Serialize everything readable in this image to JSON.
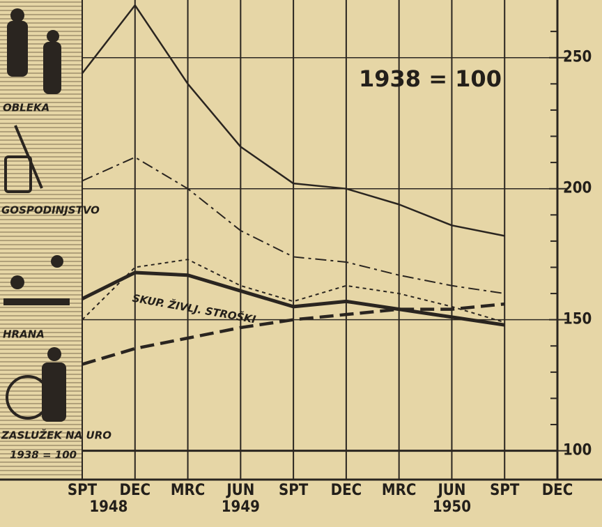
{
  "chart_data": {
    "type": "line",
    "annotation": "1938 = 100",
    "categories": [
      "SPT",
      "DEC",
      "MRC",
      "JUN",
      "SPT",
      "DEC",
      "MRC",
      "JUN",
      "SPT",
      "DEC"
    ],
    "year_labels": [
      "1948",
      "1949",
      "1950"
    ],
    "series": [
      {
        "name": "OBLEKA",
        "color": "#2a2520",
        "style": "solid",
        "width": 2.5,
        "values": [
          244,
          270,
          240,
          216,
          202,
          200,
          194,
          186,
          182,
          null
        ]
      },
      {
        "name": "GOSPODINJSTVO",
        "color": "#2a2520",
        "style": "dashdot",
        "width": 2,
        "values": [
          203,
          212,
          200,
          184,
          174,
          172,
          167,
          163,
          160,
          null
        ]
      },
      {
        "name": "HRANA",
        "color": "#2a2520",
        "style": "dotted",
        "width": 2,
        "values": [
          150,
          170,
          173,
          163,
          157,
          163,
          160,
          155,
          149,
          null
        ]
      },
      {
        "name": "SKUP. ŽIVLJ. STROŠKI",
        "color": "#2a2520",
        "style": "solid",
        "width": 5,
        "values": [
          158,
          168,
          167,
          161,
          155,
          157,
          154,
          151,
          148,
          null
        ]
      },
      {
        "name": "ZASLUŽEK NA URO",
        "color": "#2a2520",
        "style": "dashed",
        "width": 4.5,
        "values": [
          133,
          139,
          143,
          147,
          150,
          152,
          154,
          154,
          156,
          null
        ]
      },
      {
        "name": "1938 = 100",
        "color": "#2a2520",
        "style": "solid",
        "width": 3,
        "values": [
          100,
          100,
          100,
          100,
          100,
          100,
          100,
          100,
          100,
          100
        ]
      }
    ],
    "ylim": [
      89,
      272
    ],
    "yticks": [
      100,
      150,
      200,
      250
    ],
    "yminor_ticks": [
      110,
      120,
      130,
      140,
      160,
      170,
      180,
      190,
      210,
      220,
      230,
      240,
      260
    ],
    "grid": true
  }
}
